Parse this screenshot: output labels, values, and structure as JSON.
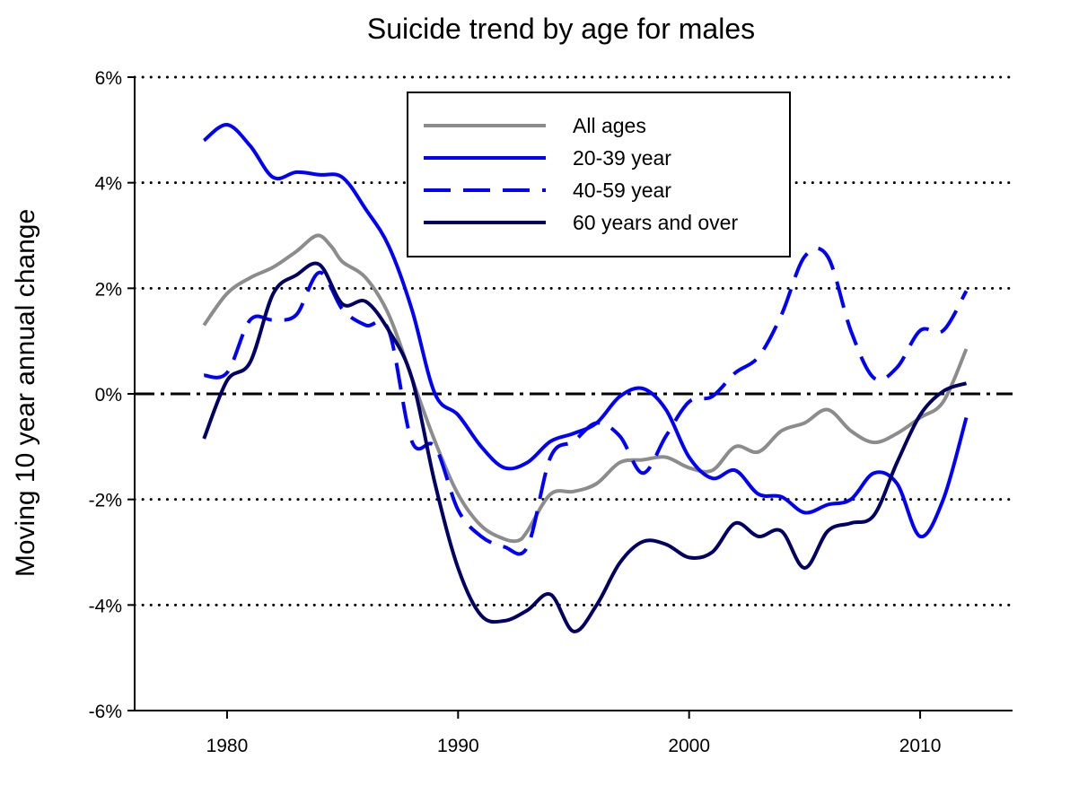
{
  "chart_data": {
    "type": "line",
    "title": "Suicide trend by age for males",
    "xlabel": "",
    "ylabel": "Moving 10 year annual change",
    "xlim": [
      1976,
      2014
    ],
    "ylim": [
      -6,
      6
    ],
    "x_ticks": [
      1980,
      1990,
      2000,
      2010
    ],
    "y_ticks": [
      -6,
      -4,
      -2,
      0,
      2,
      4,
      6
    ],
    "y_tick_labels": [
      "-6%",
      "-4%",
      "-2%",
      "0%",
      "2%",
      "4%",
      "6%"
    ],
    "grid": "horizontal dotted",
    "zero_line": "dash-dot",
    "legend_position": "top-center",
    "series": [
      {
        "name": "All ages",
        "color": "#8c8c8c",
        "dash": "solid",
        "points": [
          [
            1979,
            1.3
          ],
          [
            1980,
            1.9
          ],
          [
            1981,
            2.2
          ],
          [
            1982,
            2.4
          ],
          [
            1983,
            2.7
          ],
          [
            1983.9,
            3.0
          ],
          [
            1984.5,
            2.8
          ],
          [
            1985,
            2.5
          ],
          [
            1986,
            2.2
          ],
          [
            1987,
            1.5
          ],
          [
            1988,
            0.3
          ],
          [
            1989,
            -0.9
          ],
          [
            1990,
            -1.9
          ],
          [
            1991,
            -2.5
          ],
          [
            1992,
            -2.75
          ],
          [
            1992.6,
            -2.78
          ],
          [
            1993,
            -2.6
          ],
          [
            1994,
            -1.9
          ],
          [
            1995,
            -1.85
          ],
          [
            1996,
            -1.7
          ],
          [
            1997,
            -1.3
          ],
          [
            1998,
            -1.25
          ],
          [
            1999,
            -1.2
          ],
          [
            2000,
            -1.4
          ],
          [
            2001,
            -1.45
          ],
          [
            2002,
            -1.0
          ],
          [
            2003,
            -1.1
          ],
          [
            2004,
            -0.7
          ],
          [
            2005,
            -0.55
          ],
          [
            2006,
            -0.3
          ],
          [
            2007,
            -0.7
          ],
          [
            2008,
            -0.92
          ],
          [
            2009,
            -0.75
          ],
          [
            2010,
            -0.45
          ],
          [
            2011,
            -0.15
          ],
          [
            2012,
            0.85
          ]
        ]
      },
      {
        "name": "20-39 year",
        "color": "#0000ff",
        "dash": "solid",
        "points": [
          [
            1979,
            4.8
          ],
          [
            1980,
            5.1
          ],
          [
            1981,
            4.7
          ],
          [
            1982,
            4.1
          ],
          [
            1983,
            4.2
          ],
          [
            1984,
            4.15
          ],
          [
            1985,
            4.1
          ],
          [
            1986,
            3.5
          ],
          [
            1987,
            2.8
          ],
          [
            1988,
            1.6
          ],
          [
            1989,
            0.0
          ],
          [
            1990,
            -0.4
          ],
          [
            1991,
            -1.0
          ],
          [
            1992,
            -1.4
          ],
          [
            1993,
            -1.3
          ],
          [
            1994,
            -0.9
          ],
          [
            1995,
            -0.75
          ],
          [
            1996,
            -0.55
          ],
          [
            1997,
            -0.05
          ],
          [
            1998,
            0.1
          ],
          [
            1999,
            -0.3
          ],
          [
            2000,
            -1.2
          ],
          [
            2001,
            -1.6
          ],
          [
            2002,
            -1.45
          ],
          [
            2003,
            -1.9
          ],
          [
            2004,
            -1.95
          ],
          [
            2005,
            -2.25
          ],
          [
            2006,
            -2.1
          ],
          [
            2007,
            -2.0
          ],
          [
            2008,
            -1.5
          ],
          [
            2009,
            -1.7
          ],
          [
            2010,
            -2.7
          ],
          [
            2011,
            -2.0
          ],
          [
            2012,
            -0.45
          ]
        ]
      },
      {
        "name": "40-59 year",
        "color": "#0000ff",
        "dash": "dashed",
        "points": [
          [
            1979,
            0.35
          ],
          [
            1980,
            0.4
          ],
          [
            1981,
            1.4
          ],
          [
            1982,
            1.4
          ],
          [
            1983,
            1.5
          ],
          [
            1984,
            2.3
          ],
          [
            1985,
            1.6
          ],
          [
            1986,
            1.3
          ],
          [
            1987,
            1.2
          ],
          [
            1988,
            -0.9
          ],
          [
            1989,
            -1.0
          ],
          [
            1990,
            -2.2
          ],
          [
            1991,
            -2.7
          ],
          [
            1992,
            -2.9
          ],
          [
            1993,
            -2.9
          ],
          [
            1994,
            -1.2
          ],
          [
            1995,
            -0.9
          ],
          [
            1996,
            -0.55
          ],
          [
            1997,
            -0.8
          ],
          [
            1998,
            -1.5
          ],
          [
            1999,
            -0.8
          ],
          [
            2000,
            -0.15
          ],
          [
            2001,
            -0.05
          ],
          [
            2002,
            0.4
          ],
          [
            2003,
            0.7
          ],
          [
            2004,
            1.5
          ],
          [
            2005,
            2.6
          ],
          [
            2006,
            2.6
          ],
          [
            2007,
            1.2
          ],
          [
            2008,
            0.3
          ],
          [
            2009,
            0.5
          ],
          [
            2010,
            1.2
          ],
          [
            2011,
            1.2
          ],
          [
            2012,
            1.95
          ]
        ]
      },
      {
        "name": "60 years and over",
        "color": "#000066",
        "dash": "solid",
        "points": [
          [
            1979,
            -0.85
          ],
          [
            1980,
            0.25
          ],
          [
            1981,
            0.6
          ],
          [
            1982,
            1.9
          ],
          [
            1983,
            2.25
          ],
          [
            1984,
            2.45
          ],
          [
            1985,
            1.7
          ],
          [
            1986,
            1.75
          ],
          [
            1987,
            1.2
          ],
          [
            1988,
            0.3
          ],
          [
            1989,
            -1.7
          ],
          [
            1990,
            -3.3
          ],
          [
            1991,
            -4.2
          ],
          [
            1992,
            -4.3
          ],
          [
            1993,
            -4.1
          ],
          [
            1994,
            -3.8
          ],
          [
            1995,
            -4.5
          ],
          [
            1996,
            -4.0
          ],
          [
            1997,
            -3.2
          ],
          [
            1998,
            -2.8
          ],
          [
            1999,
            -2.85
          ],
          [
            2000,
            -3.1
          ],
          [
            2001,
            -3.0
          ],
          [
            2002,
            -2.45
          ],
          [
            2003,
            -2.7
          ],
          [
            2004,
            -2.6
          ],
          [
            2005,
            -3.3
          ],
          [
            2006,
            -2.6
          ],
          [
            2007,
            -2.45
          ],
          [
            2008,
            -2.3
          ],
          [
            2009,
            -1.3
          ],
          [
            2010,
            -0.4
          ],
          [
            2011,
            0.05
          ],
          [
            2012,
            0.2
          ]
        ]
      }
    ]
  }
}
